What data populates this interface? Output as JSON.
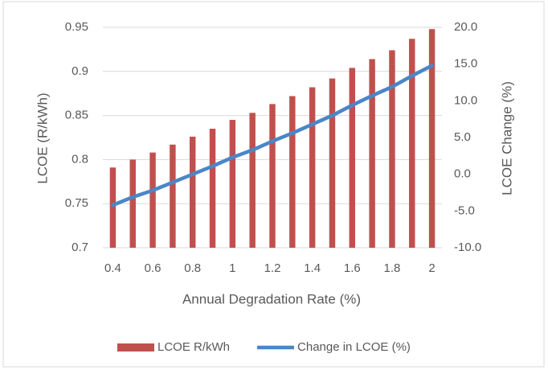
{
  "chart_data": {
    "type": "bar",
    "categories": [
      "0.4",
      null,
      "0.6",
      null,
      "0.8",
      null,
      "1",
      null,
      "1.2",
      null,
      "1.4",
      null,
      "1.6",
      null,
      "1.8",
      null,
      "2"
    ],
    "series": [
      {
        "name": "LCOE R/kWh",
        "type": "bar",
        "color": "#c0504d",
        "values": [
          0.791,
          0.8,
          0.808,
          0.817,
          0.826,
          0.835,
          0.845,
          0.853,
          0.863,
          0.872,
          0.882,
          0.892,
          0.904,
          0.914,
          0.924,
          0.937,
          0.948
        ]
      },
      {
        "name": "Change in LCOE (%)",
        "type": "line",
        "color": "#4a86c8",
        "axis": "y2",
        "values": [
          -4.2,
          -3.1,
          -2.2,
          -1.1,
          0,
          1.1,
          2.3,
          3.3,
          4.5,
          5.6,
          6.8,
          8.0,
          9.4,
          10.7,
          11.9,
          13.4,
          14.8
        ]
      }
    ],
    "xlabel": "Annual Degradation Rate (%)",
    "ylabel": "LCOE (R/kWh)",
    "y2label": "LCOE Change (%)",
    "ylim": [
      0.7,
      0.95
    ],
    "yticks": [
      0.7,
      0.75,
      0.8,
      0.85,
      0.9,
      0.95
    ],
    "y2lim": [
      -10,
      20
    ],
    "y2ticks": [
      {
        "value": -10,
        "label": "-10.0"
      },
      {
        "value": -5,
        "label": "-5.0"
      },
      {
        "value": 0,
        "label": "0.0"
      },
      {
        "value": 5,
        "label": "5.0"
      },
      {
        "value": 10,
        "label": "10.0"
      },
      {
        "value": 15,
        "label": "15.0"
      },
      {
        "value": 20,
        "label": "20.0"
      }
    ],
    "grid": true,
    "legend": "bottom"
  }
}
